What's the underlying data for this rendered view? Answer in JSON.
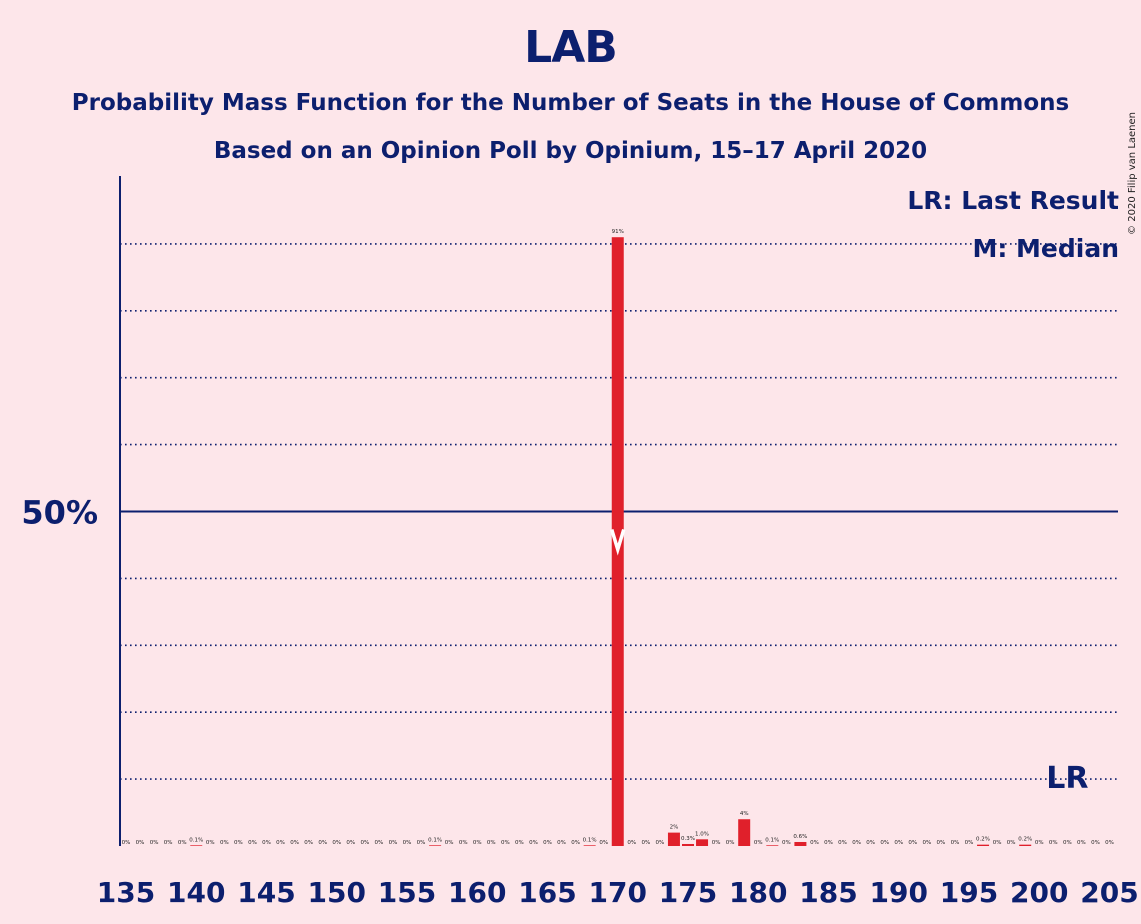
{
  "title": "LAB",
  "subtitle1": "Probability Mass Function for the Number of Seats in the House of Commons",
  "subtitle2": "Based on an Opinion Poll by Opinium, 15–17 April 2020",
  "copyright": "© 2020 Filip van Laenen",
  "legend": {
    "lr": "LR: Last Result",
    "median": "M: Median"
  },
  "colors": {
    "bar": "#e0202b",
    "axis": "#0c1f6e",
    "background": "#fde6ea"
  },
  "chart_data": {
    "type": "bar",
    "xlim": [
      135,
      205
    ],
    "ylim": [
      0,
      100
    ],
    "x_ticks": [
      135,
      140,
      145,
      150,
      155,
      160,
      165,
      170,
      175,
      180,
      185,
      190,
      195,
      200,
      205
    ],
    "y_labeled_tick": {
      "value": 50,
      "label": "50%"
    },
    "y_gridlines": [
      10,
      20,
      30,
      40,
      60,
      70,
      80,
      90
    ],
    "median_seat": 170,
    "last_result": {
      "seat": 202,
      "label": "LR"
    },
    "bars": [
      {
        "seat": 135,
        "prob": 0,
        "label": "0%"
      },
      {
        "seat": 136,
        "prob": 0,
        "label": "0%"
      },
      {
        "seat": 137,
        "prob": 0,
        "label": "0%"
      },
      {
        "seat": 138,
        "prob": 0,
        "label": "0%"
      },
      {
        "seat": 139,
        "prob": 0,
        "label": "0%"
      },
      {
        "seat": 140,
        "prob": 0.1,
        "label": "0.1%"
      },
      {
        "seat": 141,
        "prob": 0,
        "label": "0%"
      },
      {
        "seat": 142,
        "prob": 0,
        "label": "0%"
      },
      {
        "seat": 143,
        "prob": 0,
        "label": "0%"
      },
      {
        "seat": 144,
        "prob": 0,
        "label": "0%"
      },
      {
        "seat": 145,
        "prob": 0,
        "label": "0%"
      },
      {
        "seat": 146,
        "prob": 0,
        "label": "0%"
      },
      {
        "seat": 147,
        "prob": 0,
        "label": "0%"
      },
      {
        "seat": 148,
        "prob": 0,
        "label": "0%"
      },
      {
        "seat": 149,
        "prob": 0,
        "label": "0%"
      },
      {
        "seat": 150,
        "prob": 0,
        "label": "0%"
      },
      {
        "seat": 151,
        "prob": 0,
        "label": "0%"
      },
      {
        "seat": 152,
        "prob": 0,
        "label": "0%"
      },
      {
        "seat": 153,
        "prob": 0,
        "label": "0%"
      },
      {
        "seat": 154,
        "prob": 0,
        "label": "0%"
      },
      {
        "seat": 155,
        "prob": 0,
        "label": "0%"
      },
      {
        "seat": 156,
        "prob": 0,
        "label": "0%"
      },
      {
        "seat": 157,
        "prob": 0.1,
        "label": "0.1%"
      },
      {
        "seat": 158,
        "prob": 0,
        "label": "0%"
      },
      {
        "seat": 159,
        "prob": 0,
        "label": "0%"
      },
      {
        "seat": 160,
        "prob": 0,
        "label": "0%"
      },
      {
        "seat": 161,
        "prob": 0,
        "label": "0%"
      },
      {
        "seat": 162,
        "prob": 0,
        "label": "0%"
      },
      {
        "seat": 163,
        "prob": 0,
        "label": "0%"
      },
      {
        "seat": 164,
        "prob": 0,
        "label": "0%"
      },
      {
        "seat": 165,
        "prob": 0,
        "label": "0%"
      },
      {
        "seat": 166,
        "prob": 0,
        "label": "0%"
      },
      {
        "seat": 167,
        "prob": 0,
        "label": "0%"
      },
      {
        "seat": 168,
        "prob": 0.1,
        "label": "0.1%"
      },
      {
        "seat": 169,
        "prob": 0,
        "label": "0%"
      },
      {
        "seat": 170,
        "prob": 91,
        "label": "91%"
      },
      {
        "seat": 171,
        "prob": 0,
        "label": "0%"
      },
      {
        "seat": 172,
        "prob": 0,
        "label": "0%"
      },
      {
        "seat": 173,
        "prob": 0,
        "label": "0%"
      },
      {
        "seat": 174,
        "prob": 2,
        "label": "2%"
      },
      {
        "seat": 175,
        "prob": 0.3,
        "label": "0.3%"
      },
      {
        "seat": 176,
        "prob": 1.0,
        "label": "1.0%"
      },
      {
        "seat": 177,
        "prob": 0,
        "label": "0%"
      },
      {
        "seat": 178,
        "prob": 0,
        "label": "0%"
      },
      {
        "seat": 179,
        "prob": 4,
        "label": "4%"
      },
      {
        "seat": 180,
        "prob": 0,
        "label": "0%"
      },
      {
        "seat": 181,
        "prob": 0.1,
        "label": "0.1%"
      },
      {
        "seat": 182,
        "prob": 0,
        "label": "0%"
      },
      {
        "seat": 183,
        "prob": 0.6,
        "label": "0.6%"
      },
      {
        "seat": 184,
        "prob": 0,
        "label": "0%"
      },
      {
        "seat": 185,
        "prob": 0,
        "label": "0%"
      },
      {
        "seat": 186,
        "prob": 0,
        "label": "0%"
      },
      {
        "seat": 187,
        "prob": 0,
        "label": "0%"
      },
      {
        "seat": 188,
        "prob": 0,
        "label": "0%"
      },
      {
        "seat": 189,
        "prob": 0,
        "label": "0%"
      },
      {
        "seat": 190,
        "prob": 0,
        "label": "0%"
      },
      {
        "seat": 191,
        "prob": 0,
        "label": "0%"
      },
      {
        "seat": 192,
        "prob": 0,
        "label": "0%"
      },
      {
        "seat": 193,
        "prob": 0,
        "label": "0%"
      },
      {
        "seat": 194,
        "prob": 0,
        "label": "0%"
      },
      {
        "seat": 195,
        "prob": 0,
        "label": "0%"
      },
      {
        "seat": 196,
        "prob": 0.2,
        "label": "0.2%"
      },
      {
        "seat": 197,
        "prob": 0,
        "label": "0%"
      },
      {
        "seat": 198,
        "prob": 0,
        "label": "0%"
      },
      {
        "seat": 199,
        "prob": 0.2,
        "label": "0.2%"
      },
      {
        "seat": 200,
        "prob": 0,
        "label": "0%"
      },
      {
        "seat": 201,
        "prob": 0,
        "label": "0%"
      },
      {
        "seat": 202,
        "prob": 0,
        "label": "0%"
      },
      {
        "seat": 203,
        "prob": 0,
        "label": "0%"
      },
      {
        "seat": 204,
        "prob": 0,
        "label": "0%"
      },
      {
        "seat": 205,
        "prob": 0,
        "label": "0%"
      }
    ]
  }
}
